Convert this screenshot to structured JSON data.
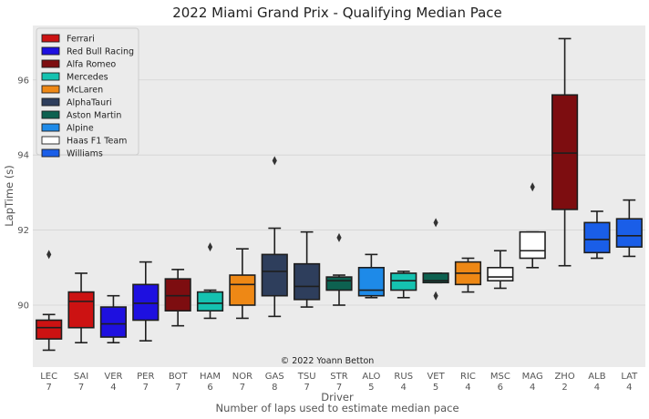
{
  "chart_data": {
    "type": "box",
    "title": "2022 Miami Grand Prix - Qualifying Median Pace",
    "xlabel": "Driver",
    "xlabel2": "Number of laps used to estimate median pace",
    "ylabel": "LapTime (s)",
    "ylim": [
      88.35,
      97.45
    ],
    "yticks": [
      90,
      92,
      94,
      96
    ],
    "grid": "horizontal",
    "legend_position": "top-left",
    "credit": "© 2022 Yoann Betton",
    "teams": [
      {
        "name": "Ferrari",
        "color": "#cc1212"
      },
      {
        "name": "Red Bull Racing",
        "color": "#1e10e0"
      },
      {
        "name": "Alfa Romeo",
        "color": "#7d0d10"
      },
      {
        "name": "Mercedes",
        "color": "#15c2b0"
      },
      {
        "name": "McLaren",
        "color": "#ee8815"
      },
      {
        "name": "AlphaTauri",
        "color": "#2e3e5c"
      },
      {
        "name": "Aston Martin",
        "color": "#0d6150"
      },
      {
        "name": "Alpine",
        "color": "#1e8ae8"
      },
      {
        "name": "Haas F1 Team",
        "color": "#ffffff"
      },
      {
        "name": "Williams",
        "color": "#1a5ee8"
      }
    ],
    "drivers": [
      {
        "driver": "LEC",
        "laps": "7",
        "team": 0,
        "whisker_low": 88.8,
        "q1": 89.1,
        "median": 89.4,
        "q3": 89.6,
        "whisker_high": 89.75,
        "outliers": [
          91.35
        ]
      },
      {
        "driver": "SAI",
        "laps": "7",
        "team": 0,
        "whisker_low": 89.0,
        "q1": 89.4,
        "median": 90.1,
        "q3": 90.35,
        "whisker_high": 90.85,
        "outliers": []
      },
      {
        "driver": "VER",
        "laps": "4",
        "team": 1,
        "whisker_low": 89.0,
        "q1": 89.15,
        "median": 89.5,
        "q3": 89.95,
        "whisker_high": 90.25,
        "outliers": []
      },
      {
        "driver": "PER",
        "laps": "7",
        "team": 1,
        "whisker_low": 89.05,
        "q1": 89.6,
        "median": 90.05,
        "q3": 90.55,
        "whisker_high": 91.15,
        "outliers": []
      },
      {
        "driver": "BOT",
        "laps": "7",
        "team": 2,
        "whisker_low": 89.45,
        "q1": 89.85,
        "median": 90.25,
        "q3": 90.7,
        "whisker_high": 90.95,
        "outliers": []
      },
      {
        "driver": "HAM",
        "laps": "6",
        "team": 3,
        "whisker_low": 89.65,
        "q1": 89.85,
        "median": 90.05,
        "q3": 90.35,
        "whisker_high": 90.4,
        "outliers": [
          91.55
        ]
      },
      {
        "driver": "NOR",
        "laps": "7",
        "team": 4,
        "whisker_low": 89.65,
        "q1": 90.0,
        "median": 90.55,
        "q3": 90.8,
        "whisker_high": 91.5,
        "outliers": []
      },
      {
        "driver": "GAS",
        "laps": "8",
        "team": 5,
        "whisker_low": 89.7,
        "q1": 90.25,
        "median": 90.9,
        "q3": 91.35,
        "whisker_high": 92.05,
        "outliers": [
          93.85
        ]
      },
      {
        "driver": "TSU",
        "laps": "7",
        "team": 5,
        "whisker_low": 89.95,
        "q1": 90.15,
        "median": 90.5,
        "q3": 91.1,
        "whisker_high": 91.95,
        "outliers": []
      },
      {
        "driver": "STR",
        "laps": "7",
        "team": 6,
        "whisker_low": 90.0,
        "q1": 90.4,
        "median": 90.65,
        "q3": 90.75,
        "whisker_high": 90.8,
        "outliers": [
          91.8
        ]
      },
      {
        "driver": "ALO",
        "laps": "5",
        "team": 7,
        "whisker_low": 90.2,
        "q1": 90.25,
        "median": 90.4,
        "q3": 91.0,
        "whisker_high": 91.35,
        "outliers": []
      },
      {
        "driver": "RUS",
        "laps": "4",
        "team": 3,
        "whisker_low": 90.2,
        "q1": 90.4,
        "median": 90.65,
        "q3": 90.85,
        "whisker_high": 90.9,
        "outliers": []
      },
      {
        "driver": "VET",
        "laps": "5",
        "team": 6,
        "whisker_low": 90.6,
        "q1": 90.6,
        "median": 90.65,
        "q3": 90.85,
        "whisker_high": 90.85,
        "outliers": [
          92.2,
          90.25
        ]
      },
      {
        "driver": "RIC",
        "laps": "4",
        "team": 4,
        "whisker_low": 90.35,
        "q1": 90.55,
        "median": 90.85,
        "q3": 91.15,
        "whisker_high": 91.25,
        "outliers": []
      },
      {
        "driver": "MSC",
        "laps": "6",
        "team": 8,
        "whisker_low": 90.45,
        "q1": 90.65,
        "median": 90.75,
        "q3": 91.0,
        "whisker_high": 91.45,
        "outliers": []
      },
      {
        "driver": "MAG",
        "laps": "4",
        "team": 8,
        "whisker_low": 91.0,
        "q1": 91.25,
        "median": 91.45,
        "q3": 91.95,
        "whisker_high": 91.95,
        "outliers": [
          93.15
        ]
      },
      {
        "driver": "ZHO",
        "laps": "2",
        "team": 2,
        "whisker_low": 91.05,
        "q1": 92.55,
        "median": 94.05,
        "q3": 95.6,
        "whisker_high": 97.1,
        "outliers": []
      },
      {
        "driver": "ALB",
        "laps": "4",
        "team": 9,
        "whisker_low": 91.25,
        "q1": 91.4,
        "median": 91.75,
        "q3": 92.2,
        "whisker_high": 92.5,
        "outliers": []
      },
      {
        "driver": "LAT",
        "laps": "4",
        "team": 9,
        "whisker_low": 91.3,
        "q1": 91.55,
        "median": 91.85,
        "q3": 92.3,
        "whisker_high": 92.8,
        "outliers": []
      }
    ]
  }
}
